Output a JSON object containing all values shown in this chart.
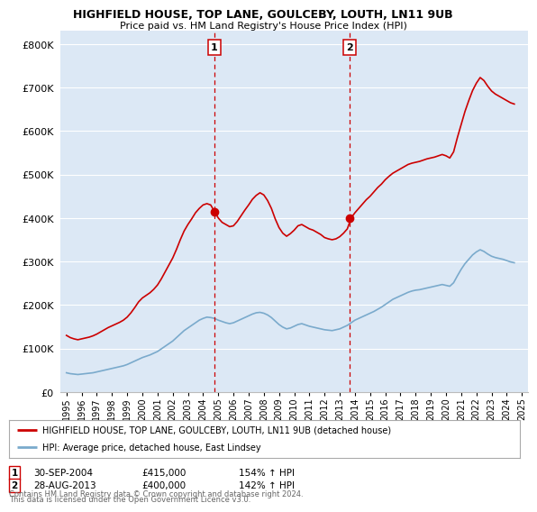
{
  "title": "HIGHFIELD HOUSE, TOP LANE, GOULCEBY, LOUTH, LN11 9UB",
  "subtitle": "Price paid vs. HM Land Registry's House Price Index (HPI)",
  "ylabel_ticks": [
    "£0",
    "£100K",
    "£200K",
    "£300K",
    "£400K",
    "£500K",
    "£600K",
    "£700K",
    "£800K"
  ],
  "ytick_values": [
    0,
    100000,
    200000,
    300000,
    400000,
    500000,
    600000,
    700000,
    800000
  ],
  "ylim": [
    0,
    830000
  ],
  "xlim_start": 1994.6,
  "xlim_end": 2025.4,
  "red_color": "#cc0000",
  "blue_color": "#7aaacc",
  "marker1_x": 2004.75,
  "marker1_y": 415000,
  "marker2_x": 2013.66,
  "marker2_y": 400000,
  "legend_line1": "HIGHFIELD HOUSE, TOP LANE, GOULCEBY, LOUTH, LN11 9UB (detached house)",
  "legend_line2": "HPI: Average price, detached house, East Lindsey",
  "footnote1": "Contains HM Land Registry data © Crown copyright and database right 2024.",
  "footnote2": "This data is licensed under the Open Government Licence v3.0.",
  "background_color": "#ffffff",
  "plot_bg_color": "#dce8f5",
  "grid_color": "#ffffff",
  "hpi_red_data_x": [
    1995.0,
    1995.25,
    1995.5,
    1995.75,
    1996.0,
    1996.25,
    1996.5,
    1996.75,
    1997.0,
    1997.25,
    1997.5,
    1997.75,
    1998.0,
    1998.25,
    1998.5,
    1998.75,
    1999.0,
    1999.25,
    1999.5,
    1999.75,
    2000.0,
    2000.25,
    2000.5,
    2000.75,
    2001.0,
    2001.25,
    2001.5,
    2001.75,
    2002.0,
    2002.25,
    2002.5,
    2002.75,
    2003.0,
    2003.25,
    2003.5,
    2003.75,
    2004.0,
    2004.25,
    2004.5,
    2004.75,
    2005.0,
    2005.25,
    2005.5,
    2005.75,
    2006.0,
    2006.25,
    2006.5,
    2006.75,
    2007.0,
    2007.25,
    2007.5,
    2007.75,
    2008.0,
    2008.25,
    2008.5,
    2008.75,
    2009.0,
    2009.25,
    2009.5,
    2009.75,
    2010.0,
    2010.25,
    2010.5,
    2010.75,
    2011.0,
    2011.25,
    2011.5,
    2011.75,
    2012.0,
    2012.25,
    2012.5,
    2012.75,
    2013.0,
    2013.25,
    2013.5,
    2013.75,
    2014.0,
    2014.25,
    2014.5,
    2014.75,
    2015.0,
    2015.25,
    2015.5,
    2015.75,
    2016.0,
    2016.25,
    2016.5,
    2016.75,
    2017.0,
    2017.25,
    2017.5,
    2017.75,
    2018.0,
    2018.25,
    2018.5,
    2018.75,
    2019.0,
    2019.25,
    2019.5,
    2019.75,
    2020.0,
    2020.25,
    2020.5,
    2020.75,
    2021.0,
    2021.25,
    2021.5,
    2021.75,
    2022.0,
    2022.25,
    2022.5,
    2022.75,
    2023.0,
    2023.25,
    2023.5,
    2023.75,
    2024.0,
    2024.25,
    2024.5
  ],
  "hpi_red_data_y": [
    130000,
    125000,
    122000,
    120000,
    122000,
    124000,
    126000,
    129000,
    133000,
    138000,
    143000,
    148000,
    152000,
    156000,
    160000,
    165000,
    172000,
    182000,
    194000,
    207000,
    216000,
    222000,
    228000,
    236000,
    246000,
    260000,
    276000,
    292000,
    308000,
    328000,
    350000,
    370000,
    385000,
    398000,
    412000,
    422000,
    430000,
    433000,
    430000,
    415000,
    400000,
    390000,
    385000,
    380000,
    382000,
    392000,
    405000,
    418000,
    430000,
    443000,
    452000,
    458000,
    453000,
    440000,
    422000,
    398000,
    378000,
    365000,
    358000,
    364000,
    372000,
    382000,
    385000,
    380000,
    375000,
    372000,
    367000,
    362000,
    355000,
    352000,
    350000,
    352000,
    357000,
    365000,
    375000,
    400000,
    412000,
    422000,
    432000,
    442000,
    450000,
    460000,
    470000,
    478000,
    488000,
    496000,
    503000,
    508000,
    513000,
    518000,
    523000,
    526000,
    528000,
    530000,
    533000,
    536000,
    538000,
    540000,
    543000,
    546000,
    543000,
    538000,
    552000,
    585000,
    615000,
    645000,
    670000,
    693000,
    710000,
    723000,
    716000,
    703000,
    692000,
    685000,
    680000,
    675000,
    670000,
    665000,
    662000
  ],
  "hpi_blue_data_x": [
    1995.0,
    1995.25,
    1995.5,
    1995.75,
    1996.0,
    1996.25,
    1996.5,
    1996.75,
    1997.0,
    1997.25,
    1997.5,
    1997.75,
    1998.0,
    1998.25,
    1998.5,
    1998.75,
    1999.0,
    1999.25,
    1999.5,
    1999.75,
    2000.0,
    2000.25,
    2000.5,
    2000.75,
    2001.0,
    2001.25,
    2001.5,
    2001.75,
    2002.0,
    2002.25,
    2002.5,
    2002.75,
    2003.0,
    2003.25,
    2003.5,
    2003.75,
    2004.0,
    2004.25,
    2004.5,
    2004.75,
    2005.0,
    2005.25,
    2005.5,
    2005.75,
    2006.0,
    2006.25,
    2006.5,
    2006.75,
    2007.0,
    2007.25,
    2007.5,
    2007.75,
    2008.0,
    2008.25,
    2008.5,
    2008.75,
    2009.0,
    2009.25,
    2009.5,
    2009.75,
    2010.0,
    2010.25,
    2010.5,
    2010.75,
    2011.0,
    2011.25,
    2011.5,
    2011.75,
    2012.0,
    2012.25,
    2012.5,
    2012.75,
    2013.0,
    2013.25,
    2013.5,
    2013.75,
    2014.0,
    2014.25,
    2014.5,
    2014.75,
    2015.0,
    2015.25,
    2015.5,
    2015.75,
    2016.0,
    2016.25,
    2016.5,
    2016.75,
    2017.0,
    2017.25,
    2017.5,
    2017.75,
    2018.0,
    2018.25,
    2018.5,
    2018.75,
    2019.0,
    2019.25,
    2019.5,
    2019.75,
    2020.0,
    2020.25,
    2020.5,
    2020.75,
    2021.0,
    2021.25,
    2021.5,
    2021.75,
    2022.0,
    2022.25,
    2022.5,
    2022.75,
    2023.0,
    2023.25,
    2023.5,
    2023.75,
    2024.0,
    2024.25,
    2024.5
  ],
  "hpi_blue_data_y": [
    44000,
    42000,
    41000,
    40000,
    41000,
    42000,
    43000,
    44000,
    46000,
    48000,
    50000,
    52000,
    54000,
    56000,
    58000,
    60000,
    63000,
    67000,
    71000,
    75000,
    79000,
    82000,
    85000,
    89000,
    93000,
    99000,
    105000,
    111000,
    117000,
    125000,
    133000,
    141000,
    147000,
    153000,
    159000,
    165000,
    169000,
    172000,
    171000,
    169000,
    165000,
    162000,
    159000,
    157000,
    159000,
    163000,
    167000,
    171000,
    175000,
    179000,
    182000,
    183000,
    181000,
    177000,
    171000,
    163000,
    155000,
    149000,
    145000,
    147000,
    151000,
    155000,
    157000,
    154000,
    151000,
    149000,
    147000,
    145000,
    143000,
    142000,
    141000,
    143000,
    145000,
    149000,
    153000,
    159000,
    165000,
    169000,
    173000,
    177000,
    181000,
    185000,
    190000,
    195000,
    201000,
    207000,
    213000,
    217000,
    221000,
    225000,
    229000,
    232000,
    234000,
    235000,
    237000,
    239000,
    241000,
    243000,
    245000,
    247000,
    245000,
    243000,
    251000,
    267000,
    282000,
    295000,
    305000,
    315000,
    322000,
    327000,
    323000,
    317000,
    312000,
    309000,
    307000,
    305000,
    302000,
    299000,
    297000
  ]
}
